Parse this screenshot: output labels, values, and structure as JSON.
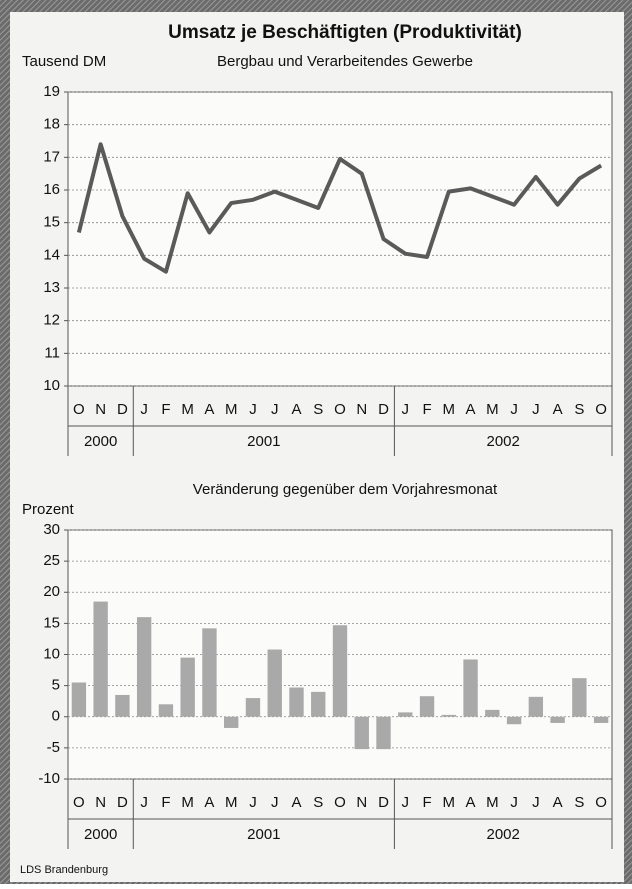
{
  "source": "LDS Brandenburg",
  "chart_data": [
    {
      "type": "line",
      "title": "Umsatz je Beschäftigten (Produktivität)",
      "subtitle": "Bergbau und Verarbeitendes Gewerbe",
      "ylabel": "Tausend DM",
      "categories": [
        "O",
        "N",
        "D",
        "J",
        "F",
        "M",
        "A",
        "M",
        "J",
        "J",
        "A",
        "S",
        "O",
        "N",
        "D",
        "J",
        "F",
        "M",
        "A",
        "M",
        "J",
        "J",
        "A",
        "S",
        "O"
      ],
      "years": [
        "2000",
        null,
        null,
        "2001",
        null,
        null,
        null,
        null,
        null,
        null,
        null,
        null,
        null,
        null,
        null,
        "2002",
        null,
        null,
        null,
        null,
        null,
        null,
        null,
        null,
        null
      ],
      "values": [
        14.7,
        17.4,
        15.2,
        13.9,
        13.5,
        15.9,
        14.7,
        15.6,
        15.7,
        15.95,
        15.7,
        15.45,
        16.95,
        16.5,
        14.5,
        14.05,
        13.95,
        15.95,
        16.05,
        15.8,
        15.55,
        16.4,
        15.55,
        16.35,
        16.75
      ],
      "color": "#5a5a5a",
      "ylim": [
        10,
        19
      ],
      "yticks": [
        10,
        11,
        12,
        13,
        14,
        15,
        16,
        17,
        18,
        19
      ],
      "grid": true
    },
    {
      "type": "bar",
      "subtitle": "Veränderung gegenüber dem Vorjahresmonat",
      "ylabel": "Prozent",
      "categories": [
        "O",
        "N",
        "D",
        "J",
        "F",
        "M",
        "A",
        "M",
        "J",
        "J",
        "A",
        "S",
        "O",
        "N",
        "D",
        "J",
        "F",
        "M",
        "A",
        "M",
        "J",
        "J",
        "A",
        "S",
        "O"
      ],
      "years": [
        "2000",
        null,
        null,
        "2001",
        null,
        null,
        null,
        null,
        null,
        null,
        null,
        null,
        null,
        null,
        null,
        "2002",
        null,
        null,
        null,
        null,
        null,
        null,
        null,
        null,
        null
      ],
      "values": [
        5.5,
        18.5,
        3.5,
        16,
        2,
        9.5,
        14.2,
        -1.8,
        3,
        10.8,
        4.7,
        4,
        14.7,
        -5.2,
        -5.2,
        0.7,
        3.3,
        0.3,
        9.2,
        1.1,
        -1.2,
        3.2,
        -1,
        6.2,
        -1
      ],
      "color": "#a9a9a9",
      "ylim": [
        -10,
        30
      ],
      "yticks": [
        -10,
        -5,
        0,
        5,
        10,
        15,
        20,
        25,
        30
      ],
      "grid": true
    }
  ]
}
